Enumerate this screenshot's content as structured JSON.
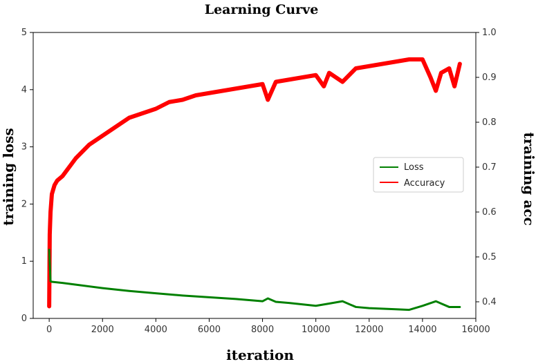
{
  "chart_data": {
    "type": "line",
    "title": "Learning Curve",
    "xlabel": "iteration",
    "ylabel_left": "training loss",
    "ylabel_right": "training acc",
    "xlim": [
      -600,
      16000
    ],
    "ylim_left": [
      0,
      5
    ],
    "ylim_right": [
      0.363,
      1.0
    ],
    "x_ticks": [
      0,
      2000,
      4000,
      6000,
      8000,
      10000,
      12000,
      14000,
      16000
    ],
    "y_left_ticks": [
      0,
      1,
      2,
      3,
      4,
      5
    ],
    "y_right_ticks": [
      0.4,
      0.5,
      0.6,
      0.7,
      0.8,
      0.9,
      1.0
    ],
    "grid": false,
    "legend": {
      "position": "center-right",
      "entries": [
        "Loss",
        "Accuracy"
      ]
    },
    "colors": {
      "loss": "#008000",
      "accuracy": "#ff0000"
    },
    "series": [
      {
        "name": "Loss",
        "axis": "left",
        "x": [
          0,
          50,
          100,
          500,
          1000,
          2000,
          3000,
          4000,
          5000,
          6000,
          7000,
          8000,
          8200,
          8500,
          9000,
          10000,
          10500,
          11000,
          11500,
          12000,
          13000,
          13500,
          14000,
          14500,
          15000,
          15400
        ],
        "y": [
          1.2,
          0.65,
          0.64,
          0.62,
          0.59,
          0.53,
          0.48,
          0.44,
          0.4,
          0.37,
          0.34,
          0.3,
          0.35,
          0.29,
          0.27,
          0.22,
          0.26,
          0.3,
          0.2,
          0.18,
          0.16,
          0.15,
          0.22,
          0.3,
          0.2,
          0.2
        ]
      },
      {
        "name": "Accuracy",
        "axis": "right",
        "x": [
          0,
          20,
          50,
          100,
          200,
          300,
          500,
          1000,
          1500,
          2000,
          2500,
          3000,
          3500,
          4000,
          4500,
          5000,
          5500,
          6000,
          6500,
          7000,
          7500,
          8000,
          8200,
          8500,
          9000,
          9500,
          10000,
          10300,
          10500,
          11000,
          11500,
          12000,
          12500,
          13000,
          13500,
          14000,
          14300,
          14500,
          14700,
          15000,
          15200,
          15400
        ],
        "y": [
          0.39,
          0.55,
          0.6,
          0.64,
          0.66,
          0.67,
          0.68,
          0.72,
          0.75,
          0.77,
          0.79,
          0.81,
          0.82,
          0.83,
          0.845,
          0.85,
          0.86,
          0.865,
          0.87,
          0.875,
          0.88,
          0.885,
          0.85,
          0.89,
          0.895,
          0.9,
          0.905,
          0.88,
          0.91,
          0.89,
          0.92,
          0.925,
          0.93,
          0.935,
          0.94,
          0.94,
          0.9,
          0.87,
          0.91,
          0.92,
          0.88,
          0.93
        ]
      }
    ]
  }
}
